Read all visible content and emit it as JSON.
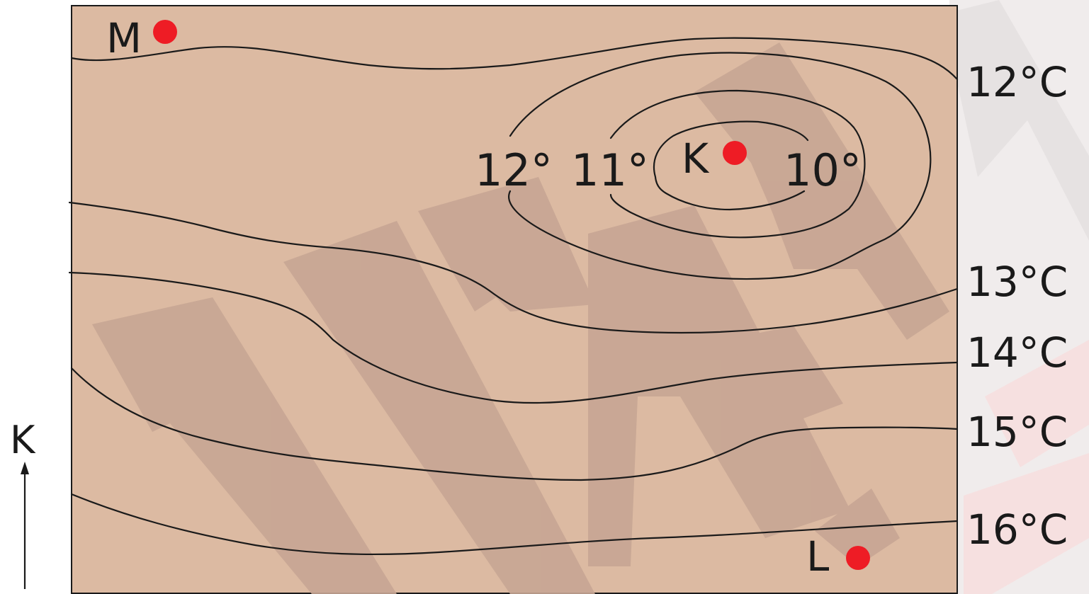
{
  "map": {
    "background_color": "#dcbaa2",
    "watermark_color": "#c7a694",
    "point_color": "#ee1c25",
    "points": [
      {
        "id": "M",
        "label": "M"
      },
      {
        "id": "K",
        "label": "K"
      },
      {
        "id": "L",
        "label": "L"
      }
    ],
    "inner_labels": {
      "t12": "12°",
      "t11": "11°",
      "t10": "10°"
    },
    "edge_labels": {
      "t12": "12°C",
      "t13": "13°C",
      "t14": "14°C",
      "t15": "15°C",
      "t16": "16°C"
    },
    "north": {
      "label": "K",
      "icon": "north-arrow-icon"
    }
  }
}
